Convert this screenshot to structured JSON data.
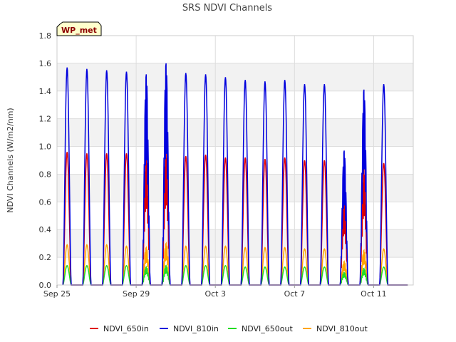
{
  "chart_data": {
    "type": "line",
    "title": "SRS NDVI Channels",
    "ylabel": "NDVI Channels (W/m2/nm)",
    "xlabel": "",
    "badge": "WP_met",
    "ylim": [
      0,
      1.8
    ],
    "yticks": [
      0.0,
      0.2,
      0.4,
      0.6,
      0.8,
      1.0,
      1.2,
      1.4,
      1.6,
      1.8
    ],
    "ytick_labels": [
      "0.0",
      "0.2",
      "0.4",
      "0.6",
      "0.8",
      "1.0",
      "1.2",
      "1.4",
      "1.6",
      "1.8"
    ],
    "xlim": [
      "2024-09-25",
      "2024-10-13"
    ],
    "xticks": [
      "2024-09-25",
      "2024-09-29",
      "2024-10-03",
      "2024-10-07",
      "2024-10-11"
    ],
    "xtick_labels": [
      "Sep 25",
      "Sep 29",
      "Oct 3",
      "Oct 7",
      "Oct 11"
    ],
    "grid": true,
    "legend_position": "bottom",
    "days": [
      "2024-09-25",
      "2024-09-26",
      "2024-09-27",
      "2024-09-28",
      "2024-09-29",
      "2024-09-30",
      "2024-10-01",
      "2024-10-02",
      "2024-10-03",
      "2024-10-04",
      "2024-10-05",
      "2024-10-06",
      "2024-10-07",
      "2024-10-08",
      "2024-10-09",
      "2024-10-10",
      "2024-10-11",
      "2024-10-12"
    ],
    "series": [
      {
        "name": "NDVI_650in",
        "color": "#e00000",
        "daily_peak": [
          0.96,
          0.95,
          0.95,
          0.95,
          0.93,
          0.97,
          0.93,
          0.94,
          0.92,
          0.92,
          0.91,
          0.92,
          0.9,
          0.9,
          0.62,
          0.84,
          0.88,
          0
        ]
      },
      {
        "name": "NDVI_810in",
        "color": "#0000dd",
        "daily_peak": [
          1.57,
          1.56,
          1.55,
          1.54,
          1.52,
          1.6,
          1.53,
          1.52,
          1.5,
          1.48,
          1.47,
          1.48,
          1.45,
          1.45,
          0.97,
          1.41,
          1.45,
          0
        ]
      },
      {
        "name": "NDVI_650out",
        "color": "#22dd22",
        "daily_peak": [
          0.14,
          0.14,
          0.14,
          0.14,
          0.13,
          0.14,
          0.14,
          0.14,
          0.14,
          0.13,
          0.13,
          0.13,
          0.13,
          0.13,
          0.09,
          0.12,
          0.13,
          0
        ]
      },
      {
        "name": "NDVI_810out",
        "color": "#ffa500",
        "daily_peak": [
          0.29,
          0.29,
          0.29,
          0.28,
          0.27,
          0.3,
          0.28,
          0.28,
          0.28,
          0.27,
          0.27,
          0.27,
          0.26,
          0.26,
          0.17,
          0.25,
          0.26,
          0
        ]
      }
    ]
  }
}
